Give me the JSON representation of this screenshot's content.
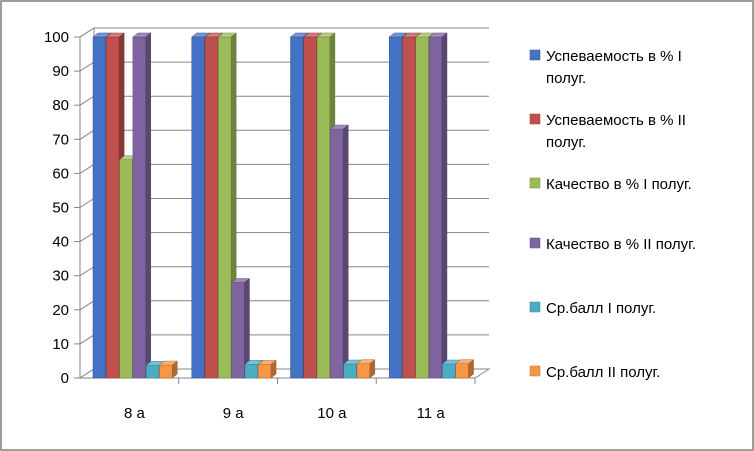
{
  "chart_data": {
    "type": "bar",
    "title": "",
    "xlabel": "",
    "ylabel": "",
    "ylim": [
      0,
      100
    ],
    "yticks": [
      0,
      10,
      20,
      30,
      40,
      50,
      60,
      70,
      80,
      90,
      100
    ],
    "grid": true,
    "legend_position": "right",
    "style": "3d-clustered",
    "categories": [
      "8 а",
      "9 а",
      "10 а",
      "11 а"
    ],
    "series": [
      {
        "name": "Успеваемость в % I полуг.",
        "legend_lines": [
          "Успеваемость в % I",
          "полуг."
        ],
        "color": "#4472C4",
        "values": [
          100,
          100,
          100,
          100
        ]
      },
      {
        "name": "Успеваемость в % II полуг.",
        "legend_lines": [
          "Успеваемость в % II",
          "полуг."
        ],
        "color": "#C0504D",
        "values": [
          100,
          100,
          100,
          100
        ]
      },
      {
        "name": "Качество в % I полуг.",
        "legend_lines": [
          "Качество в % I полуг."
        ],
        "color": "#9BBB59",
        "values": [
          64,
          100,
          100,
          100
        ]
      },
      {
        "name": "Качество в % II полуг.",
        "legend_lines": [
          "Качество в % II полуг."
        ],
        "color": "#8064A2",
        "values": [
          100,
          28,
          73,
          100
        ]
      },
      {
        "name": "Ср.балл I полуг.",
        "legend_lines": [
          "Ср.балл I полуг."
        ],
        "color": "#4BACC6",
        "values": [
          3.7,
          4,
          4.1,
          4.1
        ]
      },
      {
        "name": "Ср.балл II полуг.",
        "legend_lines": [
          "Ср.балл II полуг."
        ],
        "color": "#F79646",
        "values": [
          3.8,
          4,
          4.2,
          4.2
        ]
      }
    ]
  }
}
